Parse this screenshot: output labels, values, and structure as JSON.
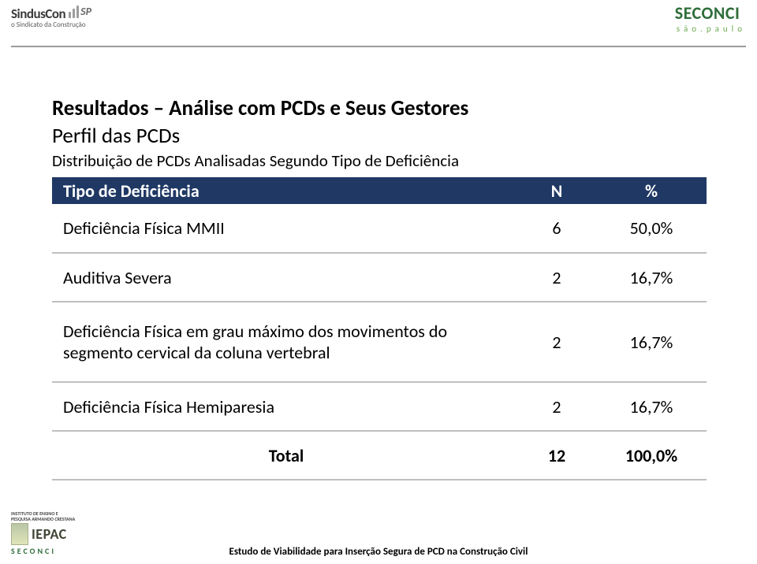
{
  "header": {
    "left": {
      "brand": "SindusCon",
      "sp": "SP",
      "sub": "o Sindicato da Construção"
    },
    "right": {
      "brand": "SECONCI",
      "sub": "são.paulo"
    }
  },
  "body": {
    "title": "Resultados – Análise com PCDs e Seus Gestores",
    "subtitle": "Perfil das PCDs",
    "caption": "Distribuição de PCDs Analisadas Segundo Tipo de Deficiência"
  },
  "table": {
    "headers": {
      "c0": "Tipo de Deficiência",
      "c1": "N",
      "c2": "%"
    },
    "rows": [
      {
        "label": "Deficiência Física MMII",
        "n": "6",
        "pct": "50,0%",
        "tall": false
      },
      {
        "label": "Auditiva Severa",
        "n": "2",
        "pct": "16,7%",
        "tall": false
      },
      {
        "label": "Deficiência Física em grau máximo dos movimentos do segmento cervical da coluna vertebral",
        "n": "2",
        "pct": "16,7%",
        "tall": true
      },
      {
        "label": "Deficiência Física Hemiparesia",
        "n": "2",
        "pct": "16,7%",
        "tall": false
      }
    ],
    "total": {
      "label": "Total",
      "n": "12",
      "pct": "100,0%"
    }
  },
  "footer": {
    "text": "Estudo de Viabilidade para Inserção Segura de PCD na Construção Civil",
    "iepac": {
      "line1": "INSTITUTO DE ENSINO E",
      "line2": "PESQUISA ARMANDO CRESTANA",
      "word": "IEPAC",
      "sub": "SECONCI"
    }
  },
  "colors": {
    "thead_bg": "#203864",
    "thead_fg": "#ffffff",
    "rule": "#bfbfbf",
    "seconci_green": "#2f6e3a"
  }
}
